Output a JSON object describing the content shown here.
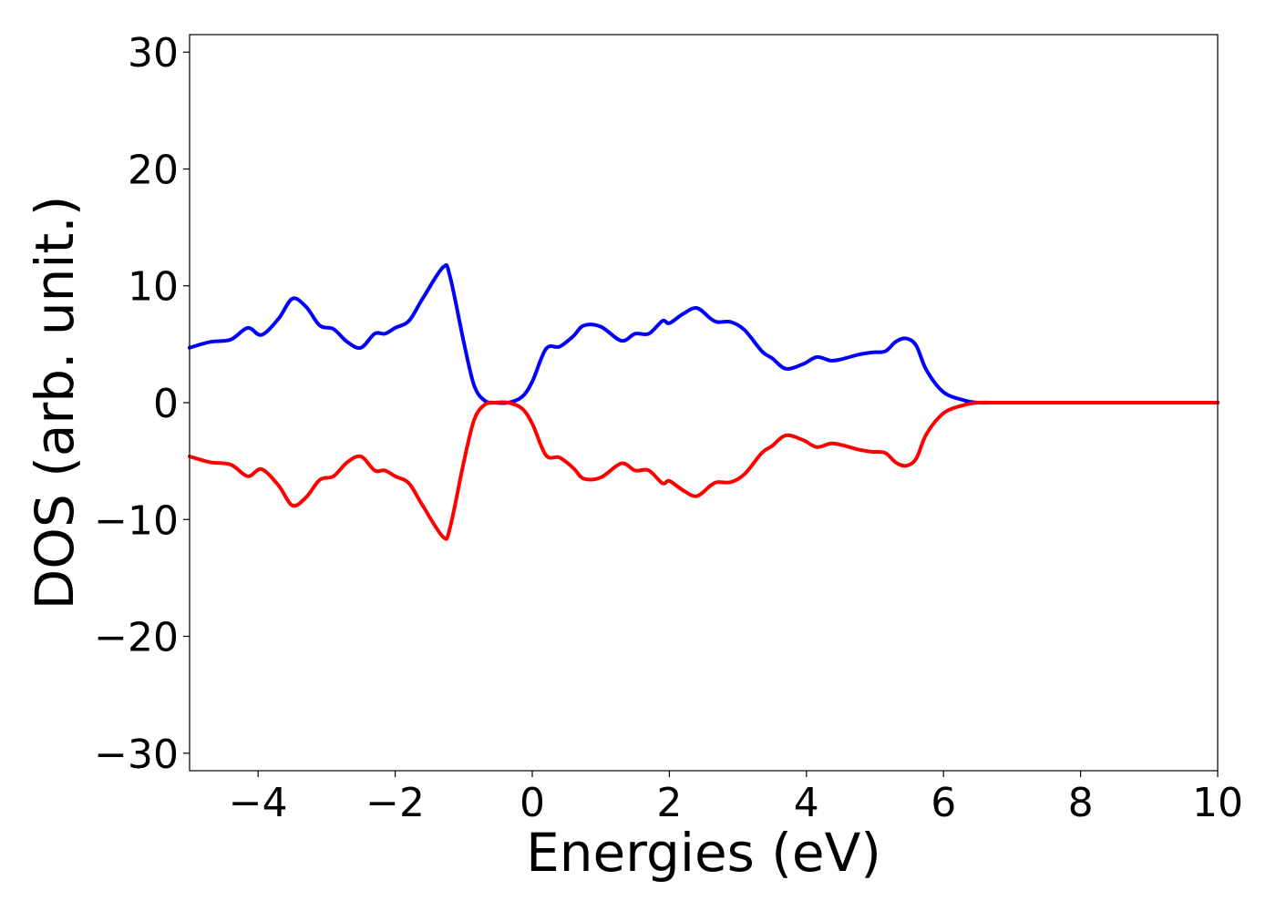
{
  "chart_data": {
    "type": "line",
    "title": "",
    "xlabel": "Energies (eV)",
    "ylabel": "DOS (arb. unit.)",
    "xlim": [
      -5,
      10
    ],
    "ylim": [
      -31.5,
      31.5
    ],
    "xticks": [
      -4,
      -2,
      0,
      2,
      4,
      6,
      8,
      10
    ],
    "xtick_labels": [
      "−4",
      "−2",
      "0",
      "2",
      "4",
      "6",
      "8",
      "10"
    ],
    "yticks": [
      -30,
      -20,
      -10,
      0,
      10,
      20,
      30
    ],
    "ytick_labels": [
      "−30",
      "−20",
      "−10",
      "0",
      "10",
      "20",
      "30"
    ],
    "grid": false,
    "series": [
      {
        "color": "#0000ff",
        "x": [
          -5.0,
          -4.7,
          -4.4,
          -4.15,
          -3.95,
          -3.7,
          -3.5,
          -3.3,
          -3.1,
          -2.9,
          -2.7,
          -2.5,
          -2.3,
          -2.15,
          -2.0,
          -1.8,
          -1.6,
          -1.3,
          -1.2,
          -1.0,
          -0.85,
          -0.7,
          -0.55,
          -0.35,
          -0.15,
          0.0,
          0.2,
          0.4,
          0.6,
          0.75,
          1.0,
          1.3,
          1.5,
          1.7,
          1.9,
          2.0,
          2.2,
          2.4,
          2.6,
          2.7,
          2.9,
          3.1,
          3.35,
          3.5,
          3.7,
          3.95,
          4.15,
          4.35,
          4.5,
          4.75,
          4.95,
          5.15,
          5.3,
          5.45,
          5.6,
          5.75,
          6.0,
          6.3,
          6.5,
          6.7,
          6.85,
          7.0,
          7.15,
          7.35,
          7.55,
          7.8,
          8.0,
          8.5,
          9.0,
          10.0
        ],
        "values": [
          4.7,
          5.2,
          5.4,
          6.4,
          5.8,
          7.2,
          8.9,
          8.2,
          6.6,
          6.3,
          5.2,
          4.7,
          5.9,
          5.9,
          6.4,
          7.0,
          8.9,
          11.6,
          10.8,
          5.2,
          1.5,
          0.2,
          0.0,
          0.0,
          0.5,
          1.8,
          4.6,
          4.8,
          5.7,
          6.6,
          6.5,
          5.3,
          5.9,
          5.9,
          7.0,
          6.8,
          7.6,
          8.1,
          7.2,
          6.9,
          6.9,
          6.2,
          4.4,
          3.8,
          2.9,
          3.3,
          3.9,
          3.6,
          3.7,
          4.1,
          4.3,
          4.4,
          5.2,
          5.5,
          4.9,
          2.8,
          0.9,
          0.2,
          0.0,
          0.0,
          0.0,
          0.0,
          0.0,
          0.0,
          0.0,
          0.0,
          0.0,
          0.0,
          0.0,
          0.0
        ]
      },
      {
        "color": "#ff0000",
        "x": [
          -5.0,
          -4.7,
          -4.4,
          -4.15,
          -3.95,
          -3.7,
          -3.5,
          -3.3,
          -3.1,
          -2.9,
          -2.7,
          -2.5,
          -2.3,
          -2.15,
          -2.0,
          -1.8,
          -1.6,
          -1.3,
          -1.2,
          -1.0,
          -0.85,
          -0.7,
          -0.55,
          -0.35,
          -0.15,
          0.0,
          0.2,
          0.4,
          0.6,
          0.75,
          1.0,
          1.3,
          1.5,
          1.7,
          1.9,
          2.0,
          2.2,
          2.4,
          2.6,
          2.7,
          2.9,
          3.1,
          3.35,
          3.5,
          3.7,
          3.95,
          4.15,
          4.35,
          4.5,
          4.75,
          4.95,
          5.15,
          5.3,
          5.45,
          5.6,
          5.75,
          6.0,
          6.3,
          6.5,
          6.7,
          6.85,
          7.0,
          7.15,
          7.35,
          7.55,
          7.8,
          8.0,
          8.5,
          9.0,
          10.0
        ],
        "values": [
          -4.6,
          -5.1,
          -5.3,
          -6.3,
          -5.7,
          -7.1,
          -8.8,
          -8.1,
          -6.6,
          -6.3,
          -5.1,
          -4.6,
          -5.8,
          -5.8,
          -6.3,
          -6.9,
          -8.8,
          -11.5,
          -10.7,
          -5.1,
          -1.5,
          -0.2,
          0.0,
          0.0,
          -0.5,
          -1.8,
          -4.5,
          -4.7,
          -5.6,
          -6.5,
          -6.4,
          -5.2,
          -5.8,
          -5.8,
          -6.9,
          -6.7,
          -7.5,
          -8.0,
          -7.1,
          -6.8,
          -6.8,
          -6.1,
          -4.3,
          -3.7,
          -2.8,
          -3.2,
          -3.8,
          -3.5,
          -3.6,
          -4.0,
          -4.2,
          -4.3,
          -5.1,
          -5.4,
          -4.8,
          -2.7,
          -0.9,
          -0.2,
          0.0,
          0.0,
          0.0,
          0.0,
          0.0,
          0.0,
          0.0,
          0.0,
          0.0,
          0.0,
          0.0,
          0.0
        ]
      }
    ]
  }
}
